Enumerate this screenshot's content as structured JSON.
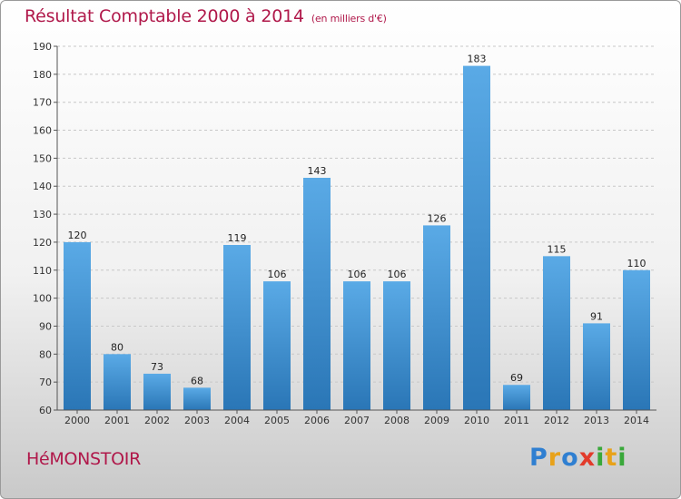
{
  "chart_data": {
    "type": "bar",
    "title": "Résultat Comptable 2000 à 2014",
    "subtitle": "(en milliers d'€)",
    "categories": [
      "2000",
      "2001",
      "2002",
      "2003",
      "2004",
      "2005",
      "2006",
      "2007",
      "2008",
      "2009",
      "2010",
      "2011",
      "2012",
      "2013",
      "2014"
    ],
    "values": [
      120,
      80,
      73,
      68,
      119,
      106,
      143,
      106,
      106,
      126,
      183,
      69,
      115,
      91,
      110
    ],
    "ylim": [
      60,
      190
    ],
    "yticks": [
      60,
      70,
      80,
      90,
      100,
      110,
      120,
      130,
      140,
      150,
      160,
      170,
      180,
      190
    ],
    "xlabel": "",
    "ylabel": "",
    "grid": true,
    "bar_color_top": "#5aaae6",
    "bar_color_bottom": "#2a76b6"
  },
  "location": "HéMONSTOIR",
  "logo": {
    "text": "Proxiti"
  }
}
